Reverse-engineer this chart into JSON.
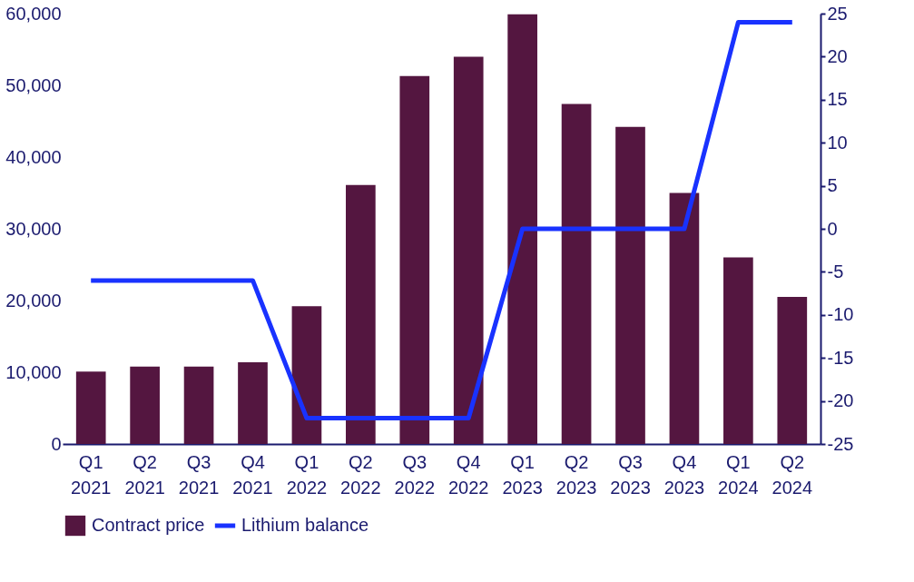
{
  "chart_data": {
    "type": "bar",
    "categories": [
      "Q1 2021",
      "Q2 2021",
      "Q3 2021",
      "Q4 2021",
      "Q1 2022",
      "Q2 2022",
      "Q3 2022",
      "Q4 2022",
      "Q1 2023",
      "Q2 2023",
      "Q3 2023",
      "Q4 2023",
      "Q1 2024",
      "Q2 2024"
    ],
    "series": [
      {
        "name": "Lithium balance",
        "type": "line",
        "axis": "y2",
        "color": "#1932ff",
        "values": [
          -6,
          -6,
          -6,
          -6,
          -22,
          -22,
          -22,
          -22,
          0,
          0,
          0,
          0,
          24,
          24
        ]
      },
      {
        "name": "Contract price",
        "color": "#541640",
        "values": [
          10100,
          10800,
          10800,
          11400,
          19200,
          36100,
          51300,
          54000,
          59900,
          47400,
          44200,
          35000,
          26000,
          20500
        ]
      }
    ],
    "ylim": [
      0,
      60000
    ],
    "yticks": [
      0,
      {
        "value": 10000,
        "label": "10,000"
      },
      {
        "value": 20000,
        "label": "20,000"
      },
      {
        "value": 30000,
        "label": "30,000"
      },
      {
        "value": 40000,
        "label": "40,000"
      },
      {
        "value": 50000,
        "label": "50,000"
      },
      {
        "value": 60000,
        "label": "60,000"
      }
    ],
    "y2lim": [
      -25,
      25
    ],
    "y2ticks": [
      -25,
      -20,
      -15,
      -10,
      -5,
      0,
      5,
      10,
      15,
      20,
      25
    ],
    "grid": false,
    "legend": "bottom",
    "marker": "none",
    "line_style": "solid"
  }
}
